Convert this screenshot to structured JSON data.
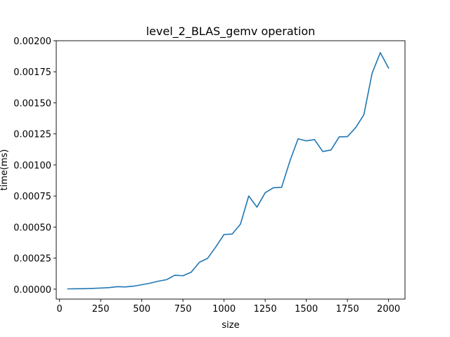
{
  "chart_data": {
    "type": "line",
    "title": "level_2_BLAS_gemv operation",
    "xlabel": "size",
    "ylabel": "time(ms)",
    "xlim": [
      -20,
      2100
    ],
    "ylim": [
      -8e-05,
      0.002
    ],
    "xticks": [
      0,
      250,
      500,
      750,
      1000,
      1250,
      1500,
      1750,
      2000
    ],
    "xtick_labels": [
      "0",
      "250",
      "500",
      "750",
      "1000",
      "1250",
      "1500",
      "1750",
      "2000"
    ],
    "yticks": [
      0,
      0.00025,
      0.0005,
      0.00075,
      0.001,
      0.00125,
      0.0015,
      0.00175,
      0.002
    ],
    "ytick_labels": [
      "0.00000",
      "0.00025",
      "0.00050",
      "0.00075",
      "0.00100",
      "0.00125",
      "0.00150",
      "0.00175",
      "0.00200"
    ],
    "grid": false,
    "legend": "none",
    "series_color": "#1f77b4",
    "series": [
      {
        "x": [
          50,
          100,
          150,
          200,
          250,
          300,
          350,
          400,
          450,
          500,
          550,
          600,
          650,
          700,
          750,
          800,
          850,
          900,
          950,
          1000,
          1050,
          1100,
          1150,
          1200,
          1250,
          1300,
          1350,
          1400,
          1450,
          1500,
          1550,
          1600,
          1650,
          1700,
          1750,
          1800,
          1850,
          1900,
          1950,
          2000
        ],
        "values": [
          2e-06,
          3e-06,
          4e-06,
          6e-06,
          9e-06,
          1.2e-05,
          2e-05,
          1.8e-05,
          2.4e-05,
          3.6e-05,
          4.8e-05,
          6.4e-05,
          7.6e-05,
          0.000112,
          0.000108,
          0.000136,
          0.000216,
          0.000248,
          0.00034,
          0.00044,
          0.000444,
          0.000524,
          0.00075,
          0.00066,
          0.000776,
          0.000816,
          0.00082,
          0.00103,
          0.00121,
          0.001194,
          0.001204,
          0.001108,
          0.00112,
          0.001226,
          0.001228,
          0.0013,
          0.001404,
          0.001738,
          0.001904,
          0.00178
        ]
      }
    ]
  }
}
